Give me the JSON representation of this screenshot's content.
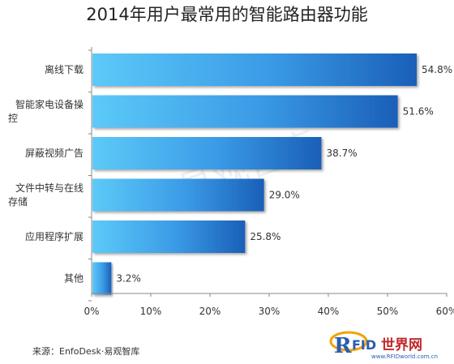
{
  "chart_data": {
    "type": "bar",
    "orientation": "horizontal",
    "title": "2014年用户最常用的智能路由器功能",
    "categories": [
      [
        "离线下载"
      ],
      [
        "智能家电设备操",
        "控"
      ],
      [
        "屏蔽视频广告"
      ],
      [
        "文件中转与在线",
        "存储"
      ],
      [
        "应用程序扩展"
      ],
      [
        "其他"
      ]
    ],
    "values": [
      54.8,
      51.6,
      38.7,
      29.0,
      25.8,
      3.2
    ],
    "value_labels": [
      "54.8%",
      "51.6%",
      "38.7%",
      "29.0%",
      "25.8%",
      "3.2%"
    ],
    "xlim": [
      0,
      60
    ],
    "xticks": [
      "0%",
      "10%",
      "20%",
      "30%",
      "40%",
      "50%",
      "60%"
    ],
    "xlabel": "",
    "ylabel": "",
    "grid": false,
    "colors": {
      "bar_light": "#5ccaf8",
      "bar_dark": "#1a5fb8",
      "axis": "#888888"
    }
  },
  "source": "来源：EnfoDesk·易观智库",
  "watermark": "易观智库",
  "logo_text": "RFID世界网",
  "logo_url_text": "www.RFIDworld.com.cn"
}
